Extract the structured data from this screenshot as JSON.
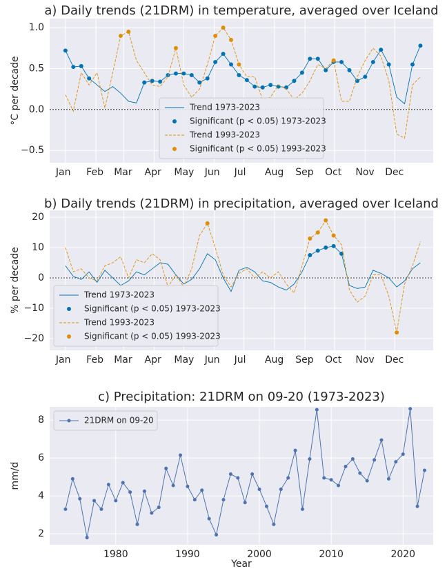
{
  "chart_data": [
    {
      "type": "line",
      "title": "a) Daily trends (21DRM) in temperature, averaged over Iceland",
      "y_label": "°C per decade",
      "x": [
        1,
        9,
        17,
        25,
        33,
        41,
        49,
        57,
        65,
        73,
        81,
        89,
        97,
        105,
        113,
        121,
        129,
        137,
        145,
        153,
        161,
        169,
        177,
        185,
        193,
        201,
        209,
        217,
        225,
        233,
        241,
        249,
        257,
        265,
        273,
        281,
        289,
        297,
        305,
        313,
        321,
        329,
        337,
        345,
        353,
        361
      ],
      "series": [
        {
          "name": "Trend 1973-2023",
          "kind": "line",
          "color": "#0173b2",
          "values": [
            0.72,
            0.52,
            0.53,
            0.38,
            0.3,
            0.22,
            0.28,
            0.2,
            0.1,
            0.08,
            0.33,
            0.35,
            0.34,
            0.42,
            0.44,
            0.44,
            0.42,
            0.33,
            0.38,
            0.58,
            0.68,
            0.55,
            0.42,
            0.36,
            0.28,
            0.27,
            0.3,
            0.28,
            0.27,
            0.35,
            0.45,
            0.62,
            0.62,
            0.48,
            0.58,
            0.58,
            0.48,
            0.35,
            0.4,
            0.58,
            0.73,
            0.55,
            0.15,
            0.07,
            0.55,
            0.78
          ]
        },
        {
          "name": "Significant (p < 0.05) 1973-2023",
          "kind": "scatter",
          "color": "#0173b2",
          "values": [
            0.72,
            0.52,
            0.53,
            0.38,
            null,
            null,
            null,
            null,
            null,
            null,
            0.33,
            0.35,
            0.34,
            0.42,
            0.44,
            0.44,
            0.42,
            0.33,
            0.38,
            0.58,
            0.68,
            0.55,
            0.42,
            0.36,
            0.28,
            0.27,
            0.3,
            0.28,
            0.27,
            0.35,
            0.45,
            0.62,
            0.62,
            0.48,
            0.58,
            0.58,
            0.48,
            0.35,
            0.4,
            0.58,
            0.73,
            0.55,
            null,
            null,
            0.55,
            0.78
          ]
        },
        {
          "name": "Trend 1993-2023",
          "kind": "line",
          "dashed": true,
          "color": "#de8f05",
          "values": [
            0.18,
            -0.02,
            0.45,
            0.3,
            0.45,
            0.02,
            0.45,
            0.9,
            0.95,
            0.6,
            0.45,
            0.3,
            0.28,
            0.4,
            0.75,
            0.3,
            0.15,
            0.25,
            0.55,
            0.9,
            1.0,
            0.85,
            0.55,
            0.4,
            0.4,
            0.12,
            0.15,
            0.3,
            0.25,
            0.12,
            0.2,
            0.35,
            0.55,
            0.5,
            0.6,
            0.1,
            0.1,
            0.4,
            0.6,
            0.75,
            0.65,
            0.35,
            -0.3,
            -0.35,
            0.3,
            0.4
          ]
        },
        {
          "name": "Significant (p < 0.05) 1993-2023",
          "kind": "scatter",
          "color": "#de8f05",
          "values": [
            null,
            null,
            null,
            null,
            null,
            null,
            null,
            0.9,
            0.95,
            null,
            null,
            null,
            null,
            null,
            0.75,
            null,
            null,
            null,
            null,
            0.9,
            1.0,
            0.85,
            0.55,
            null,
            null,
            null,
            null,
            null,
            null,
            null,
            null,
            null,
            null,
            null,
            0.6,
            null,
            null,
            null,
            null,
            null,
            null,
            null,
            null,
            null,
            null,
            null
          ]
        }
      ],
      "xlim": [
        -15,
        374
      ],
      "xticks": [
        {
          "value": 1,
          "label": "Jan"
        },
        {
          "value": 32,
          "label": "Feb"
        },
        {
          "value": 60,
          "label": "Mar"
        },
        {
          "value": 91,
          "label": "Apr"
        },
        {
          "value": 121,
          "label": "May"
        },
        {
          "value": 152,
          "label": "Jun"
        },
        {
          "value": 182,
          "label": "Jul"
        },
        {
          "value": 213,
          "label": "Aug"
        },
        {
          "value": 244,
          "label": "Sep"
        },
        {
          "value": 274,
          "label": "Oct"
        },
        {
          "value": 305,
          "label": "Nov"
        },
        {
          "value": 335,
          "label": "Dec"
        }
      ],
      "ylim": [
        -0.65,
        1.11
      ],
      "yticks": [
        {
          "value": -0.5,
          "label": "−0.5"
        },
        {
          "value": 0,
          "label": "0.0"
        },
        0.5,
        {
          "value": 1,
          "label": "1.0"
        }
      ],
      "reference_line": 0,
      "grid": true,
      "legend": "lower center"
    },
    {
      "type": "line",
      "title": "b) Daily trends (21DRM) in precipitation, averaged over Iceland",
      "y_label": "% per decade",
      "x": [
        1,
        9,
        17,
        25,
        33,
        41,
        49,
        57,
        65,
        73,
        81,
        89,
        97,
        105,
        113,
        121,
        129,
        137,
        145,
        153,
        161,
        169,
        177,
        185,
        193,
        201,
        209,
        217,
        225,
        233,
        241,
        249,
        257,
        265,
        273,
        281,
        289,
        297,
        305,
        313,
        321,
        329,
        337,
        345,
        353,
        361
      ],
      "series": [
        {
          "name": "Trend 1973-2023",
          "kind": "line",
          "color": "#0173b2",
          "values": [
            4,
            0.5,
            -0.5,
            2,
            -1.5,
            2.5,
            0,
            -2.5,
            -1,
            2,
            1,
            3,
            5,
            4.5,
            1,
            -2,
            -0.5,
            3,
            8,
            6,
            0,
            -4.5,
            2.5,
            3.5,
            2,
            -1,
            -1.5,
            -3,
            -4,
            -2,
            2,
            7.5,
            9,
            10,
            10.5,
            8,
            -2.5,
            -3.5,
            -3,
            2.5,
            1.5,
            0,
            -3,
            -1,
            3,
            5
          ]
        },
        {
          "name": "Significant (p < 0.05) 1973-2023",
          "kind": "scatter",
          "color": "#0173b2",
          "values": [
            null,
            null,
            null,
            null,
            null,
            null,
            null,
            null,
            null,
            null,
            null,
            null,
            null,
            null,
            null,
            null,
            null,
            null,
            null,
            null,
            null,
            null,
            null,
            null,
            null,
            null,
            null,
            null,
            null,
            null,
            null,
            7.5,
            9,
            10,
            10.5,
            8,
            null,
            null,
            null,
            null,
            null,
            null,
            null,
            null,
            null,
            null
          ]
        },
        {
          "name": "Trend 1993-2023",
          "kind": "line",
          "dashed": true,
          "color": "#de8f05",
          "values": [
            10,
            2,
            3,
            0,
            -1,
            4,
            5,
            7,
            0,
            6,
            5,
            8,
            6,
            -3,
            1,
            -3,
            3,
            14,
            18,
            10,
            1,
            -3,
            1.5,
            3,
            0,
            2,
            0,
            2,
            -2,
            -5,
            4,
            13,
            15,
            19,
            14,
            11,
            -4,
            -8,
            -6,
            1,
            1,
            -6,
            -18,
            -2,
            4,
            12
          ]
        },
        {
          "name": "Significant (p < 0.05) 1993-2023",
          "kind": "scatter",
          "color": "#de8f05",
          "values": [
            null,
            null,
            null,
            null,
            null,
            null,
            null,
            null,
            null,
            null,
            null,
            null,
            null,
            null,
            null,
            null,
            null,
            null,
            18,
            null,
            null,
            null,
            null,
            null,
            null,
            null,
            null,
            null,
            null,
            null,
            null,
            13,
            15,
            19,
            14,
            null,
            null,
            null,
            null,
            null,
            null,
            null,
            -18,
            null,
            null,
            null
          ]
        }
      ],
      "xlim": [
        -15,
        374
      ],
      "xticks": [
        {
          "value": 1,
          "label": "Jan"
        },
        {
          "value": 32,
          "label": "Feb"
        },
        {
          "value": 60,
          "label": "Mar"
        },
        {
          "value": 91,
          "label": "Apr"
        },
        {
          "value": 121,
          "label": "May"
        },
        {
          "value": 152,
          "label": "Jun"
        },
        {
          "value": 182,
          "label": "Jul"
        },
        {
          "value": 213,
          "label": "Aug"
        },
        {
          "value": 244,
          "label": "Sep"
        },
        {
          "value": 274,
          "label": "Oct"
        },
        {
          "value": 305,
          "label": "Nov"
        },
        {
          "value": 335,
          "label": "Dec"
        }
      ],
      "ylim": [
        -23.9,
        22.3
      ],
      "yticks": [
        {
          "value": -20,
          "label": "−20"
        },
        {
          "value": -10,
          "label": "−10"
        },
        0,
        10,
        20
      ],
      "reference_line": 0,
      "grid": true,
      "legend": "lower left"
    },
    {
      "type": "line",
      "title": "c) Precipitation: 21DRM on 09-20 (1973-2023)",
      "x_label": "Year",
      "y_label": "mm/d",
      "x": [
        1973,
        1974,
        1975,
        1976,
        1977,
        1978,
        1979,
        1980,
        1981,
        1982,
        1983,
        1984,
        1985,
        1986,
        1987,
        1988,
        1989,
        1990,
        1991,
        1992,
        1993,
        1994,
        1995,
        1996,
        1997,
        1998,
        1999,
        2000,
        2001,
        2002,
        2003,
        2004,
        2005,
        2006,
        2007,
        2008,
        2009,
        2010,
        2011,
        2012,
        2013,
        2014,
        2015,
        2016,
        2017,
        2018,
        2019,
        2020,
        2021,
        2022,
        2023
      ],
      "series": [
        {
          "name": "21DRM on 09-20",
          "kind": "line",
          "marker": true,
          "color": "#4c72b0",
          "values": [
            3.3,
            4.9,
            3.85,
            1.8,
            3.75,
            3.3,
            4.6,
            3.75,
            4.7,
            4.2,
            2.5,
            4.25,
            3.1,
            3.4,
            5.45,
            4.55,
            6.15,
            4.5,
            3.8,
            4.3,
            2.8,
            1.95,
            3.8,
            5.15,
            4.95,
            3.65,
            5.15,
            4.35,
            3.45,
            2.5,
            4.35,
            4.95,
            6.4,
            3.3,
            5.95,
            8.55,
            4.95,
            4.85,
            4.55,
            5.55,
            5.95,
            5.2,
            4.8,
            5.9,
            6.95,
            4.9,
            5.8,
            6.2,
            8.6,
            3.45,
            5.35
          ]
        }
      ],
      "xlim": [
        1970.8,
        2024.2
      ],
      "xticks": [
        1980,
        1990,
        2000,
        2010,
        2020
      ],
      "ylim": [
        1.42,
        8.7
      ],
      "yticks": [
        2,
        4,
        6,
        8
      ],
      "grid": true,
      "legend": "upper left"
    }
  ]
}
